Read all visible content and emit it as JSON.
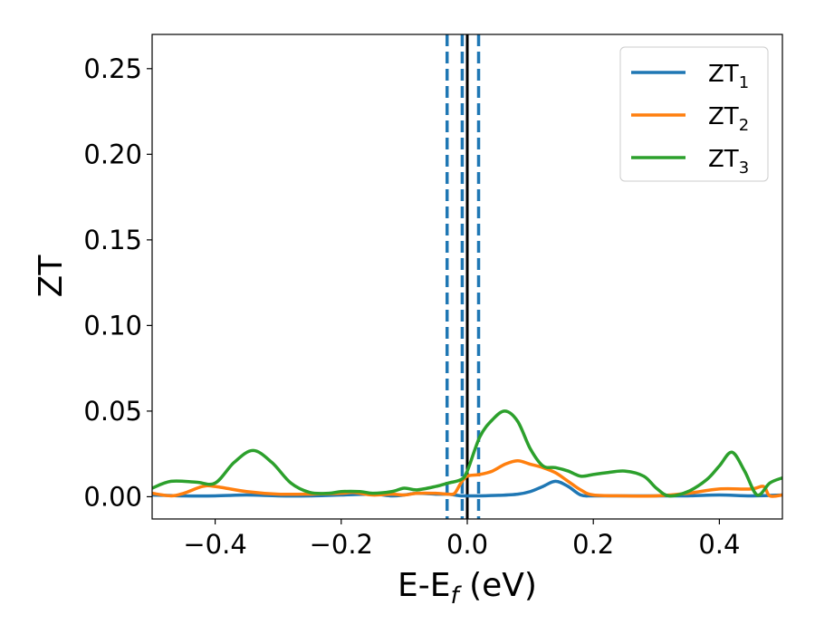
{
  "chart_data": {
    "type": "line",
    "xlabel": "E-E",
    "xlabel_sub": "f",
    "xlabel_unit": " (eV)",
    "ylabel": "ZT",
    "xlim": [
      -0.5,
      0.5
    ],
    "ylim": [
      -0.013,
      0.27
    ],
    "xticks": [
      -0.4,
      -0.2,
      0.0,
      0.2,
      0.4
    ],
    "xtick_labels": [
      "−0.4",
      "−0.2",
      "0.0",
      "0.2",
      "0.4"
    ],
    "yticks": [
      0.0,
      0.05,
      0.1,
      0.15,
      0.2,
      0.25
    ],
    "ytick_labels": [
      "0.00",
      "0.05",
      "0.10",
      "0.15",
      "0.20",
      "0.25"
    ],
    "grid": false,
    "legend_position": "top-right",
    "vlines": [
      {
        "x": 0.0,
        "style": "solid",
        "color": "#000000"
      },
      {
        "x": -0.032,
        "style": "dashed",
        "color": "#1f77b4"
      },
      {
        "x": -0.008,
        "style": "dashed",
        "color": "#1f77b4"
      },
      {
        "x": 0.018,
        "style": "dashed",
        "color": "#1f77b4"
      }
    ],
    "series": [
      {
        "name": "ZT",
        "name_sub": "1",
        "color": "#1f77b4",
        "x": [
          -0.5,
          -0.45,
          -0.4,
          -0.35,
          -0.3,
          -0.25,
          -0.2,
          -0.15,
          -0.12,
          -0.1,
          -0.08,
          -0.05,
          -0.03,
          -0.02,
          -0.01,
          0.0,
          0.02,
          0.05,
          0.08,
          0.1,
          0.12,
          0.14,
          0.16,
          0.18,
          0.2,
          0.25,
          0.3,
          0.35,
          0.4,
          0.45,
          0.5
        ],
        "y": [
          0.001,
          0.0005,
          0.0005,
          0.001,
          0.0005,
          0.0005,
          0.001,
          0.0015,
          0.0005,
          0.001,
          0.002,
          0.0015,
          0.0015,
          0.001,
          0.0005,
          0.0005,
          0.0005,
          0.0008,
          0.0015,
          0.003,
          0.006,
          0.009,
          0.006,
          0.001,
          0.0005,
          0.0005,
          0.0005,
          0.0005,
          0.001,
          0.0005,
          0.001
        ]
      },
      {
        "name": "ZT",
        "name_sub": "2",
        "color": "#ff7f0e",
        "x": [
          -0.5,
          -0.47,
          -0.45,
          -0.42,
          -0.4,
          -0.35,
          -0.3,
          -0.25,
          -0.2,
          -0.18,
          -0.15,
          -0.12,
          -0.1,
          -0.08,
          -0.05,
          -0.03,
          -0.02,
          -0.01,
          0.0,
          0.02,
          0.04,
          0.06,
          0.08,
          0.1,
          0.12,
          0.14,
          0.16,
          0.18,
          0.2,
          0.25,
          0.3,
          0.35,
          0.4,
          0.45,
          0.47,
          0.48,
          0.5
        ],
        "y": [
          0.002,
          0.0005,
          0.002,
          0.006,
          0.006,
          0.003,
          0.0015,
          0.0015,
          0.002,
          0.0025,
          0.001,
          0.0015,
          0.001,
          0.002,
          0.002,
          0.0015,
          0.002,
          0.008,
          0.012,
          0.013,
          0.015,
          0.019,
          0.021,
          0.019,
          0.017,
          0.014,
          0.009,
          0.004,
          0.001,
          0.0005,
          0.0005,
          0.002,
          0.0045,
          0.0045,
          0.006,
          0.0005,
          0.001
        ]
      },
      {
        "name": "ZT",
        "name_sub": "3",
        "color": "#2ca02c",
        "x": [
          -0.5,
          -0.47,
          -0.43,
          -0.4,
          -0.37,
          -0.34,
          -0.31,
          -0.28,
          -0.25,
          -0.22,
          -0.2,
          -0.17,
          -0.15,
          -0.12,
          -0.1,
          -0.08,
          -0.05,
          -0.03,
          -0.01,
          0.0,
          0.02,
          0.04,
          0.06,
          0.08,
          0.1,
          0.12,
          0.14,
          0.16,
          0.18,
          0.2,
          0.22,
          0.25,
          0.28,
          0.3,
          0.32,
          0.35,
          0.38,
          0.4,
          0.42,
          0.44,
          0.46,
          0.48,
          0.5
        ],
        "y": [
          0.005,
          0.009,
          0.0085,
          0.008,
          0.02,
          0.027,
          0.02,
          0.008,
          0.0025,
          0.002,
          0.003,
          0.003,
          0.002,
          0.003,
          0.005,
          0.004,
          0.006,
          0.008,
          0.01,
          0.015,
          0.035,
          0.045,
          0.05,
          0.044,
          0.028,
          0.018,
          0.017,
          0.015,
          0.012,
          0.013,
          0.014,
          0.015,
          0.012,
          0.005,
          0.0005,
          0.003,
          0.01,
          0.018,
          0.026,
          0.015,
          0.001,
          0.008,
          0.011
        ]
      }
    ]
  }
}
